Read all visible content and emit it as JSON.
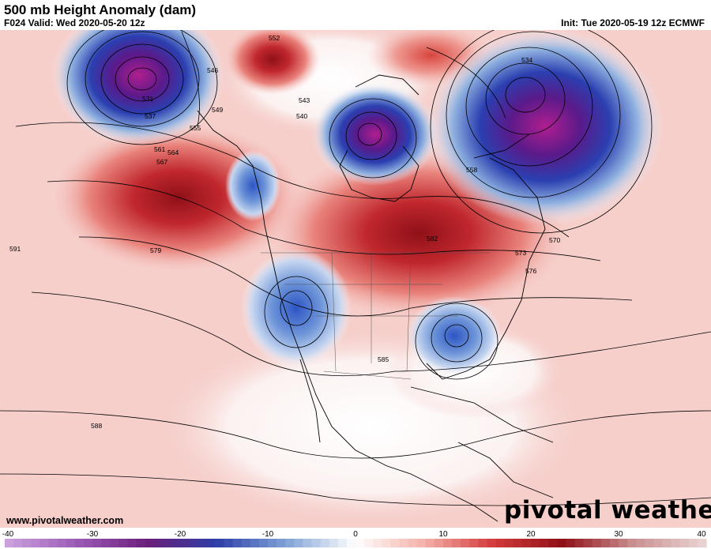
{
  "header": {
    "title": "500 mb Height Anomaly (dam)",
    "valid": "F024 Valid: Wed 2020-05-20 12z",
    "init": "Init: Tue 2020-05-19 12z ECMWF"
  },
  "footer": {
    "website": "www.pivotalweather.com",
    "brand": "pivotal weather"
  },
  "colorbar": {
    "ticks": [
      "-40",
      "-30",
      "-20",
      "-10",
      "0",
      "10",
      "20",
      "30",
      "40"
    ],
    "min": -40,
    "max": 40,
    "stops": [
      "#c9a0dc",
      "#9b59b6",
      "#6b1f7a",
      "#2e3fa8",
      "#7fa3d6",
      "#ffffff",
      "#f4b0a8",
      "#d33a3a",
      "#8f1018",
      "#c98f8f",
      "#e9d1d1"
    ]
  },
  "map": {
    "contour_labels": [
      "531",
      "534",
      "537",
      "540",
      "543",
      "546",
      "549",
      "552",
      "555",
      "558",
      "561",
      "564",
      "567",
      "570",
      "573",
      "576",
      "579",
      "582",
      "585",
      "588",
      "591"
    ],
    "anomaly_features": [
      {
        "kind": "trough",
        "anomaly": -28
      },
      {
        "kind": "trough",
        "anomaly": -25
      },
      {
        "kind": "trough",
        "anomaly": -32
      },
      {
        "kind": "trough",
        "anomaly": -14
      },
      {
        "kind": "trough",
        "anomaly": -13
      },
      {
        "kind": "ridge",
        "anomaly": 22
      },
      {
        "kind": "ridge",
        "anomaly": 24
      },
      {
        "kind": "ridge",
        "anomaly": 16
      }
    ]
  }
}
